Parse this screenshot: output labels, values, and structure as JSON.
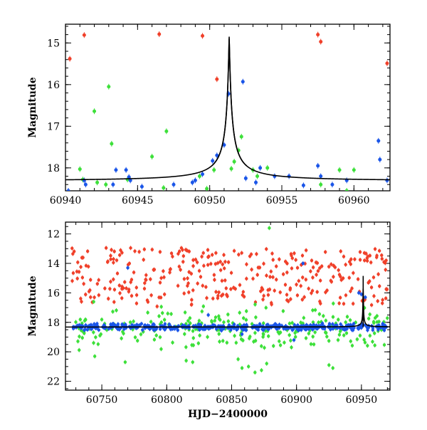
{
  "chart_data": [
    {
      "type": "scatter",
      "panel": "top",
      "xlabel": "",
      "ylabel": "Magnitude",
      "xlim": [
        60940,
        60962.5
      ],
      "ylim": [
        18.55,
        14.55
      ],
      "y_inverted": true,
      "xticks": [
        60940,
        60945,
        60950,
        60955,
        60960
      ],
      "yticks": [
        15,
        16,
        17,
        18
      ],
      "colors": {
        "red": "#f0402a",
        "green": "#3de03a",
        "blue": "#1a55e8",
        "model": "#000000"
      },
      "model_curve": {
        "name": "microlensing model",
        "baseline": 18.32,
        "peak_time": 60951.35,
        "peak_mag": 14.85,
        "width": 0.5
      },
      "series": [
        {
          "name": "red",
          "color": "#f0402a",
          "points": [
            [
              60940.3,
              15.38
            ],
            [
              60941.3,
              14.81
            ],
            [
              60946.5,
              14.79
            ],
            [
              60949.5,
              14.83
            ],
            [
              60950.5,
              15.87
            ],
            [
              60957.5,
              14.8
            ],
            [
              60957.7,
              14.97
            ],
            [
              60962.3,
              15.49
            ]
          ]
        },
        {
          "name": "green",
          "color": "#3de03a",
          "points": [
            [
              60941.0,
              18.03
            ],
            [
              60941.2,
              18.28
            ],
            [
              60942.0,
              16.64
            ],
            [
              60942.2,
              18.35
            ],
            [
              60942.8,
              18.4
            ],
            [
              60943.0,
              16.05
            ],
            [
              60943.2,
              17.42
            ],
            [
              60944.3,
              18.28
            ],
            [
              60946.0,
              17.73
            ],
            [
              60946.8,
              18.48
            ],
            [
              60947.0,
              17.12
            ],
            [
              60949.3,
              18.2
            ],
            [
              60949.8,
              18.5
            ],
            [
              60950.3,
              18.05
            ],
            [
              60951.5,
              18.02
            ],
            [
              60951.7,
              17.85
            ],
            [
              60952.0,
              17.58
            ],
            [
              60952.2,
              17.25
            ],
            [
              60953.0,
              18.05
            ],
            [
              60953.3,
              18.2
            ],
            [
              60954.0,
              18.0
            ],
            [
              60957.7,
              18.4
            ],
            [
              60959.0,
              18.05
            ],
            [
              60960.0,
              18.05
            ],
            [
              60959.5,
              18.55
            ]
          ]
        },
        {
          "name": "blue",
          "color": "#1a55e8",
          "points": [
            [
              60940.2,
              18.55
            ],
            [
              60941.3,
              18.3
            ],
            [
              60941.4,
              18.4
            ],
            [
              60943.3,
              18.4
            ],
            [
              60943.5,
              18.05
            ],
            [
              60944.2,
              18.05
            ],
            [
              60944.4,
              18.22
            ],
            [
              60944.5,
              18.3
            ],
            [
              60945.3,
              18.45
            ],
            [
              60947.5,
              18.4
            ],
            [
              60948.8,
              18.35
            ],
            [
              60949.0,
              18.3
            ],
            [
              60949.5,
              18.15
            ],
            [
              60950.2,
              17.83
            ],
            [
              60950.5,
              17.7
            ],
            [
              60951.0,
              17.45
            ],
            [
              60951.3,
              16.22
            ],
            [
              60952.3,
              15.93
            ],
            [
              60952.5,
              18.25
            ],
            [
              60953.2,
              18.35
            ],
            [
              60953.5,
              18.0
            ],
            [
              60954.5,
              18.2
            ],
            [
              60955.5,
              18.2
            ],
            [
              60956.5,
              18.42
            ],
            [
              60957.5,
              17.95
            ],
            [
              60957.7,
              18.2
            ],
            [
              60958.5,
              18.4
            ],
            [
              60959.5,
              18.3
            ],
            [
              60961.7,
              17.35
            ],
            [
              60961.8,
              17.8
            ],
            [
              60962.3,
              18.3
            ]
          ]
        }
      ]
    },
    {
      "type": "scatter",
      "panel": "bottom",
      "xlabel": "HJD−2400000",
      "ylabel": "Magnitude",
      "xlim": [
        60722,
        60972
      ],
      "ylim": [
        22.6,
        11.2
      ],
      "y_inverted": true,
      "xticks": [
        60750,
        60800,
        60850,
        60900,
        60950
      ],
      "yticks": [
        12,
        14,
        16,
        18,
        20,
        22
      ],
      "model_curve": {
        "name": "microlensing model",
        "baseline": 18.32,
        "peak_time": 60951.35,
        "peak_mag": 14.85,
        "width": 0.5
      },
      "series": [
        {
          "name": "red",
          "color": "#f0402a",
          "distribution": {
            "x_range": [
              60727,
              60970
            ],
            "mag_range": [
              13.0,
              16.8
            ],
            "count": 330,
            "seed": 7
          }
        },
        {
          "name": "green",
          "color": "#3de03a",
          "distribution": {
            "x_range": [
              60727,
              60970
            ],
            "mag_center": 18.4,
            "mag_spread": 1.0,
            "count": 230,
            "seed": 11
          },
          "outliers": [
            [
              60879,
              11.6
            ],
            [
              60735,
              19.05
            ],
            [
              60820,
              20.7
            ],
            [
              60855,
              20.5
            ],
            [
              60858,
              21.1
            ],
            [
              60863,
              21.0
            ],
            [
              60868,
              21.4
            ],
            [
              60873,
              21.25
            ],
            [
              60877,
              20.8
            ],
            [
              60925,
              20.9
            ],
            [
              60928,
              21.1
            ],
            [
              60768,
              20.7
            ],
            [
              60815,
              20.6
            ],
            [
              60932,
              19.2
            ]
          ]
        },
        {
          "name": "blue",
          "color": "#1a55e8",
          "distribution": {
            "x_range": [
              60727,
              60970
            ],
            "mag_center": 18.32,
            "mag_spread": 0.15,
            "count": 420,
            "seed": 23
          },
          "outliers": [
            [
              60770,
              14.3
            ],
            [
              60905,
              14.0
            ],
            [
              60950,
              16.1
            ],
            [
              60953,
              16.3
            ],
            [
              60898,
              19.2
            ],
            [
              60858,
              18.8
            ],
            [
              60832,
              17.5
            ],
            [
              60948,
              16.0
            ]
          ]
        }
      ]
    }
  ]
}
